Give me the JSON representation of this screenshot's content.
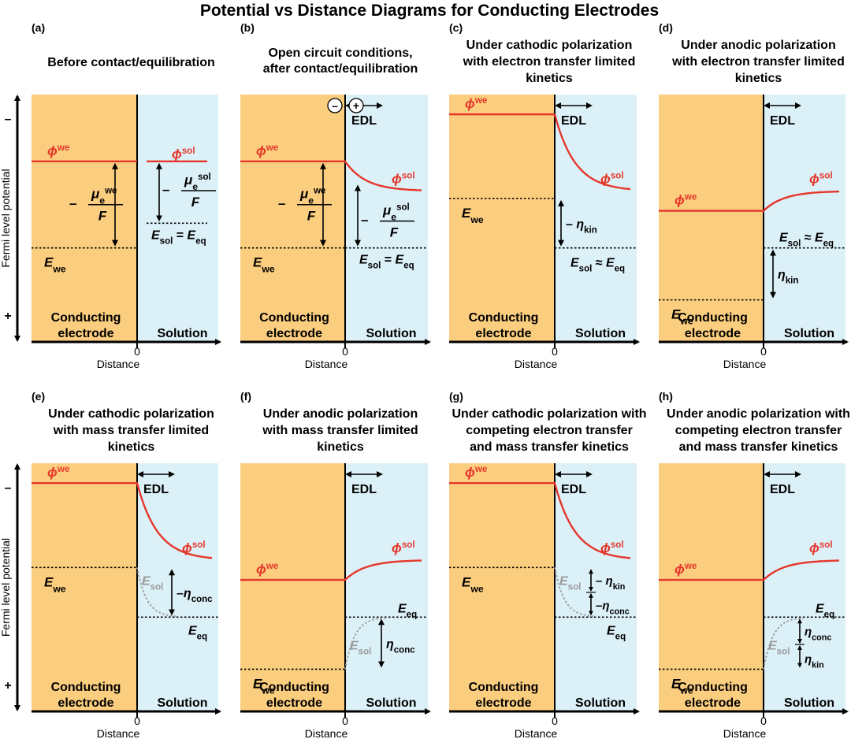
{
  "figure_title": "Potential vs Distance Diagrams for Conducting Electrodes",
  "axis": {
    "ylabel": "Fermi level potential",
    "y_top_sign": "–",
    "y_bottom_sign": "+",
    "xlabel": "Distance",
    "x_origin": "0"
  },
  "region_labels": {
    "electrode_line1": "Conducting",
    "electrode_line2": "electrode",
    "solution": "Solution"
  },
  "symbols": {
    "phi": "ϕ",
    "we": "we",
    "sol": "sol",
    "E": "E",
    "mu": "μ",
    "e": "e",
    "eq": "eq",
    "F": "F",
    "minus": "–",
    "approx": "≈",
    "equals": "=",
    "eta": "η",
    "kin": "kin",
    "conc": "conc",
    "EDL": "EDL"
  },
  "panels": [
    {
      "letter": "(a)",
      "title": [
        "",
        "Before contact/equilibration"
      ],
      "col": 0,
      "row": 0,
      "phi_we": 0.27,
      "phi_sol": 0.27,
      "E_we": 0.62,
      "E_sol": 0.52,
      "curve": "none",
      "gap": true,
      "labels": [
        "phi_we",
        "phi_sol",
        "E_we",
        "E_sol_eq_gap",
        "mu_we_F",
        "mu_sol_F"
      ]
    },
    {
      "letter": "(b)",
      "title": [
        "Open circuit conditions,",
        "after contact/equilibration"
      ],
      "col": 1,
      "row": 0,
      "phi_we": 0.27,
      "phi_sol": 0.39,
      "E_we": 0.62,
      "E_sol": 0.62,
      "curve": "decay_down",
      "gap": false,
      "charges": [
        "–",
        "+"
      ],
      "labels": [
        "phi_we",
        "phi_sol",
        "E_we",
        "E_sol_eq",
        "mu_we_F",
        "mu_sol_F",
        "EDL"
      ]
    },
    {
      "letter": "(c)",
      "title": [
        "Under cathodic polarization",
        "with electron transfer limited",
        "kinetics"
      ],
      "col": 2,
      "row": 0,
      "phi_we": 0.08,
      "phi_sol": 0.39,
      "E_we": 0.42,
      "E_sol": 0.62,
      "curve": "decay_down",
      "gap": false,
      "labels": [
        "phi_we",
        "phi_sol",
        "E_we",
        "E_sol_approx",
        "neg_eta_kin",
        "EDL"
      ]
    },
    {
      "letter": "(d)",
      "title": [
        "Under anodic polarization",
        "with electron transfer limited",
        "kinetics"
      ],
      "col": 3,
      "row": 0,
      "phi_we": 0.47,
      "phi_sol": 0.39,
      "E_we": 0.83,
      "E_sol": 0.62,
      "curve": "rise_up",
      "gap": false,
      "labels": [
        "phi_we",
        "phi_sol",
        "E_we",
        "E_sol_approx",
        "eta_kin",
        "EDL"
      ]
    },
    {
      "letter": "(e)",
      "title": [
        "Under cathodic polarization",
        "with mass transfer limited",
        "kinetics"
      ],
      "col": 0,
      "row": 1,
      "phi_we": 0.08,
      "phi_sol": 0.39,
      "E_we": 0.42,
      "E_sol": 0.62,
      "curve": "decay_down",
      "gap": false,
      "labels": [
        "phi_we",
        "phi_sol",
        "E_we",
        "E_eq",
        "E_sol_grey_down",
        "neg_eta_conc",
        "EDL"
      ]
    },
    {
      "letter": "(f)",
      "title": [
        "Under anodic polarization",
        "with mass transfer limited",
        "kinetics"
      ],
      "col": 1,
      "row": 1,
      "phi_we": 0.47,
      "phi_sol": 0.39,
      "E_we": 0.83,
      "E_sol": 0.62,
      "curve": "rise_up",
      "gap": false,
      "labels": [
        "phi_we",
        "phi_sol",
        "E_we",
        "E_eq_up",
        "E_sol_grey_up",
        "eta_conc",
        "EDL"
      ]
    },
    {
      "letter": "(g)",
      "title": [
        "Under cathodic polarization with",
        "competing electron transfer",
        "and mass transfer kinetics"
      ],
      "col": 2,
      "row": 1,
      "phi_we": 0.08,
      "phi_sol": 0.39,
      "E_we": 0.42,
      "E_sol": 0.62,
      "curve": "decay_down",
      "gap": false,
      "labels": [
        "phi_we",
        "phi_sol",
        "E_we",
        "E_eq",
        "E_sol_grey_down",
        "neg_eta_kin_conc",
        "EDL"
      ]
    },
    {
      "letter": "(h)",
      "title": [
        "Under anodic polarization with",
        "competing electron transfer",
        "and mass transfer kinetics"
      ],
      "col": 3,
      "row": 1,
      "phi_we": 0.47,
      "phi_sol": 0.39,
      "E_we": 0.83,
      "E_sol": 0.62,
      "curve": "rise_up",
      "gap": false,
      "labels": [
        "phi_we",
        "phi_sol",
        "E_we",
        "E_eq_up",
        "E_sol_grey_up",
        "eta_conc_kin",
        "EDL"
      ]
    }
  ],
  "colors": {
    "electrode": "#fbcd7e",
    "solution": "#dcf0f8",
    "potential": "#e5372b",
    "grey": "#9a9a9a",
    "ink": "#000000"
  }
}
